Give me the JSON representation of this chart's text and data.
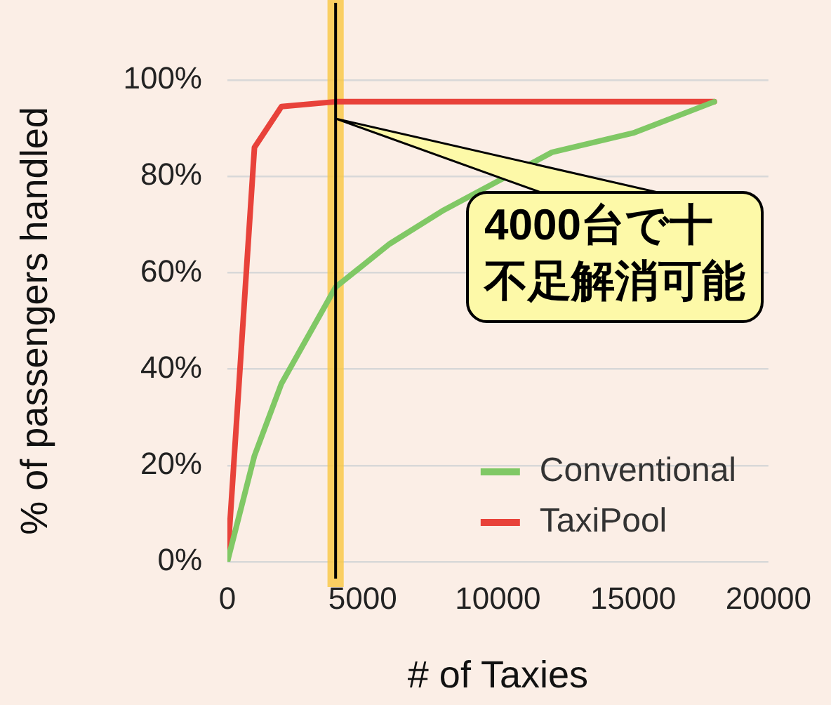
{
  "chart_data": {
    "type": "line",
    "xlabel": "# of Taxies",
    "ylabel": "% of passengers handled",
    "xlim": [
      0,
      20000
    ],
    "xticks": [
      0,
      5000,
      10000,
      15000,
      20000
    ],
    "ylim": [
      0,
      100
    ],
    "yticks": [
      {
        "value": 0,
        "label": "0%"
      },
      {
        "value": 20,
        "label": "20%"
      },
      {
        "value": 40,
        "label": "40%"
      },
      {
        "value": 60,
        "label": "60%"
      },
      {
        "value": 80,
        "label": "80%"
      },
      {
        "value": 100,
        "label": "100%"
      }
    ],
    "grid": "y",
    "legend": "bottom right",
    "marker": "none",
    "line_style": "solid",
    "series": [
      {
        "name": "Conventional",
        "color": "#80c865",
        "x": [
          0,
          1000,
          2000,
          4000,
          6000,
          8000,
          10000,
          12000,
          15000,
          18000
        ],
        "values": [
          0,
          22,
          37,
          57,
          66,
          73,
          79,
          85,
          89,
          95.5
        ]
      },
      {
        "name": "TaxiPool",
        "color": "#e8423a",
        "x": [
          0,
          1000,
          2000,
          4000,
          10000,
          18000
        ],
        "values": [
          0,
          86,
          94.5,
          95.5,
          95.5,
          95.5
        ]
      }
    ],
    "ref_lines": [
      {
        "axis": "x",
        "value": 4000,
        "color": "#000000"
      }
    ],
    "bands": [
      {
        "axis": "x",
        "from": 3700,
        "to": 4300,
        "color": "#f9c94a"
      }
    ],
    "annotations": [
      {
        "text": "4000台で十不足解消可能",
        "x": 4000,
        "y": 92
      }
    ]
  }
}
